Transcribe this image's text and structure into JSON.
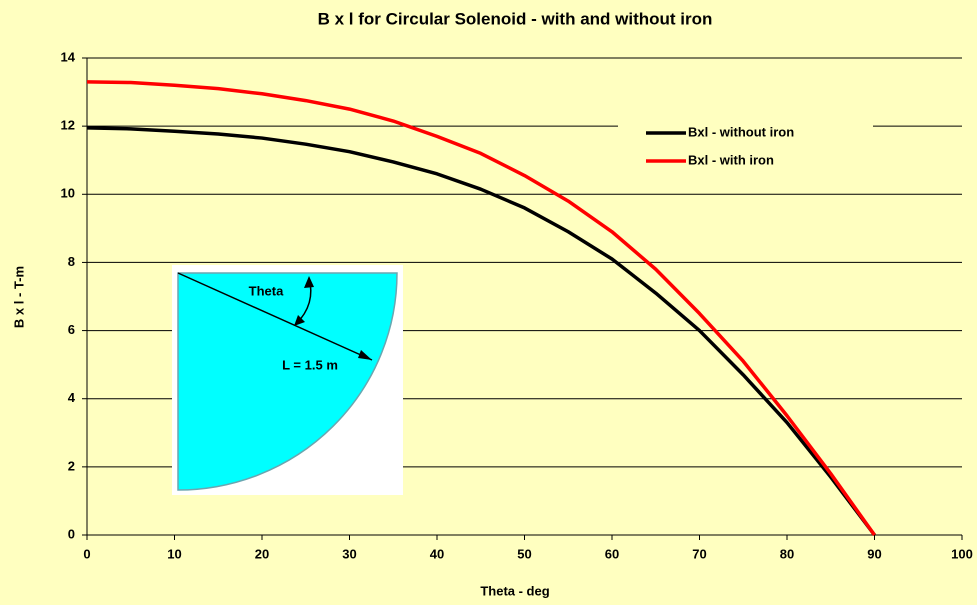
{
  "chart_data": {
    "type": "line",
    "title": "B x l for Circular Solenoid - with and without iron",
    "x_label": "Theta - deg",
    "y_label": "B x l - T-m",
    "x": [
      0,
      5,
      10,
      15,
      20,
      25,
      30,
      35,
      40,
      45,
      50,
      55,
      60,
      65,
      70,
      75,
      80,
      85,
      90
    ],
    "series": [
      {
        "name": "Bxl - without iron",
        "color": "#000000",
        "values": [
          11.95,
          11.92,
          11.85,
          11.77,
          11.65,
          11.47,
          11.25,
          10.95,
          10.6,
          10.15,
          9.6,
          8.9,
          8.1,
          7.1,
          6.0,
          4.7,
          3.3,
          1.7,
          0
        ]
      },
      {
        "name": "Bxl - with iron",
        "color": "#ff0000",
        "values": [
          13.3,
          13.28,
          13.2,
          13.1,
          12.95,
          12.75,
          12.5,
          12.15,
          11.7,
          11.2,
          10.55,
          9.8,
          8.9,
          7.8,
          6.5,
          5.1,
          3.5,
          1.8,
          0
        ]
      }
    ],
    "xlim": [
      0,
      100
    ],
    "xticks": [
      0,
      10,
      20,
      30,
      40,
      50,
      60,
      70,
      80,
      90,
      100
    ],
    "ylim": [
      0,
      14
    ],
    "yticks": [
      0,
      2,
      4,
      6,
      8,
      10,
      12,
      14
    ],
    "grid": true,
    "legend": "upper right",
    "annotations": [
      "Theta",
      "L = 1.5 m"
    ]
  }
}
